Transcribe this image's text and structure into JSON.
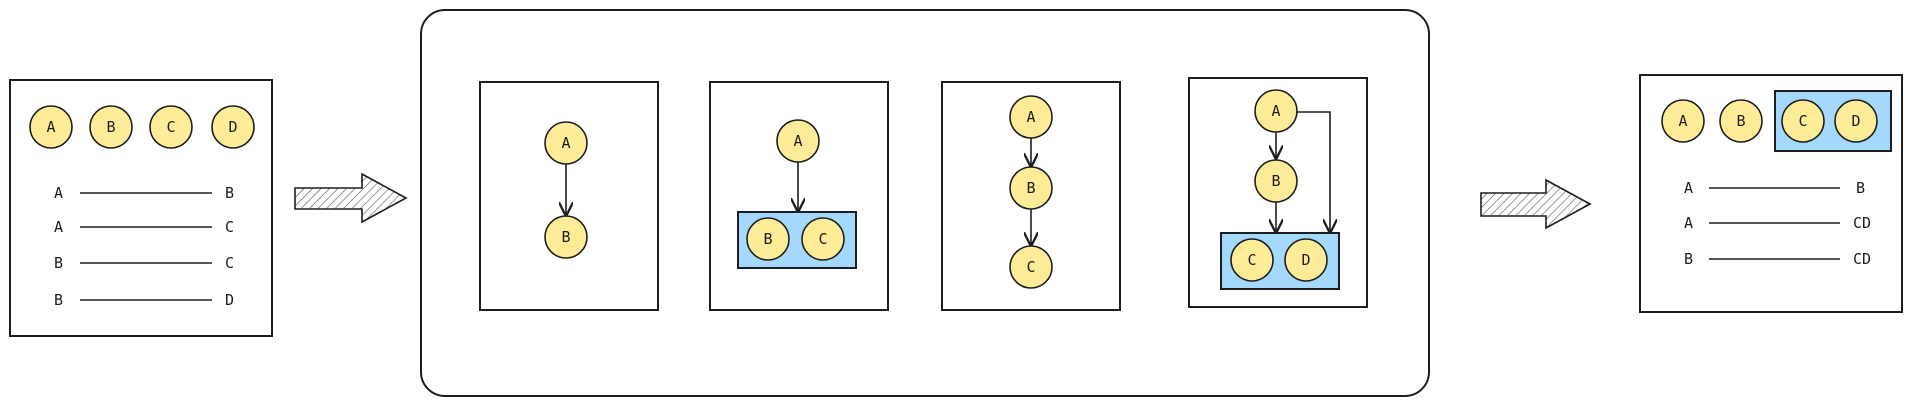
{
  "input_panel": {
    "nodes": [
      "A",
      "B",
      "C",
      "D"
    ],
    "edges": [
      {
        "from": "A",
        "to": "B"
      },
      {
        "from": "A",
        "to": "C"
      },
      {
        "from": "B",
        "to": "C"
      },
      {
        "from": "B",
        "to": "D"
      }
    ]
  },
  "process_panel": {
    "step1": {
      "top": "A",
      "bottom": "B"
    },
    "step2": {
      "top": "A",
      "group": [
        "B",
        "C"
      ]
    },
    "step3": {
      "nodes": [
        "A",
        "B",
        "C"
      ]
    },
    "step4": {
      "top": "A",
      "middle": "B",
      "group": [
        "C",
        "D"
      ]
    }
  },
  "output_panel": {
    "nodes": [
      "A",
      "B"
    ],
    "group": [
      "C",
      "D"
    ],
    "edges": [
      {
        "from": "A",
        "to": "B"
      },
      {
        "from": "A",
        "to": "CD"
      },
      {
        "from": "B",
        "to": "CD"
      }
    ]
  },
  "colors": {
    "node_fill": "#ffec99",
    "group_fill": "#a5d8ff",
    "stroke": "#1e1e1e"
  }
}
